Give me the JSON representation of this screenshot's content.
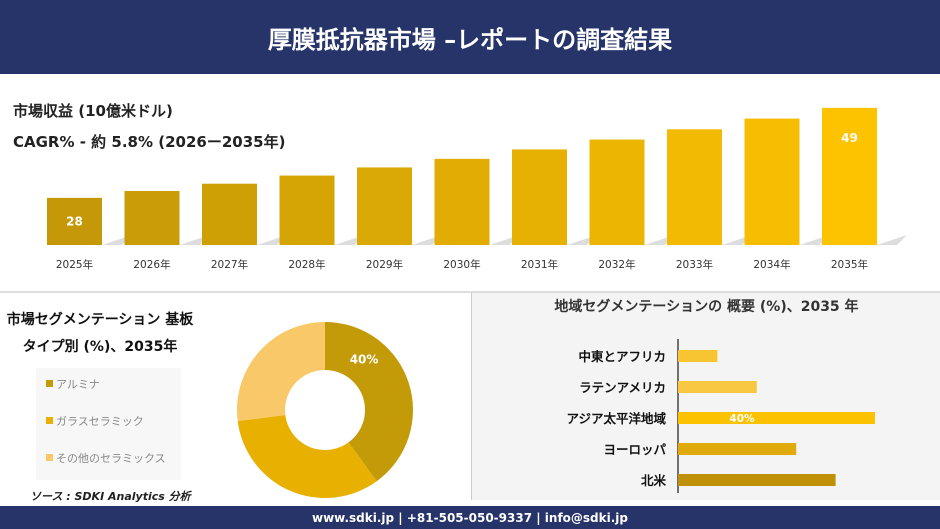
{
  "header": {
    "title": "厚膜抵抗器市場 –レポートの調査結果"
  },
  "footer": {
    "contact": "www.sdki.jp | +81-505-050-9337 | info@sdki.jp"
  },
  "source": "ソース : SDKI Analytics 分析",
  "colors": {
    "navy": "#273469",
    "dark_gold": "#c39a08",
    "gold": "#e0aa00",
    "yellow": "#f5bd00",
    "light": "#f9c868"
  },
  "chart_data": [
    {
      "type": "bar",
      "title": "市場収益 (10億米ドル)",
      "subtitle": "CAGR% - 約 5.8% (2026ー2035年)",
      "categories": [
        "2025年",
        "2026年",
        "2027年",
        "2028年",
        "2029年",
        "2030年",
        "2031年",
        "2032年",
        "2033年",
        "2034年",
        "2035年"
      ],
      "values": [
        28,
        29.6,
        31.3,
        33.2,
        35.1,
        37.1,
        39.3,
        41.6,
        44.0,
        46.5,
        49
      ],
      "data_labels": {
        "0": "28",
        "10": "49"
      }
    },
    {
      "type": "pie",
      "donut": true,
      "title": "市場セグメンテーション 基板タイプ別 (%)、2035年",
      "labels": [
        "アルミナ",
        "ガラスセラミック",
        "その他のセラミックス"
      ],
      "values": [
        40,
        33,
        27
      ],
      "colors": [
        "#c39a08",
        "#e8b000",
        "#f9c868"
      ],
      "data_labels": {
        "0": "40%"
      },
      "legend": "left"
    },
    {
      "type": "bar",
      "orientation": "horizontal",
      "title": "地域セグメンテーションの 概要 (%)、2035 年",
      "categories": [
        "中東とアフリカ",
        "ラテンアメリカ",
        "アジア太平洋地域",
        "ヨーロッパ",
        "北米"
      ],
      "values": [
        8,
        16,
        40,
        24,
        32
      ],
      "colors": [
        "#f7c531",
        "#f9c842",
        "#fcc200",
        "#e0aa0c",
        "#c09008"
      ],
      "data_labels": {
        "2": "40%"
      }
    }
  ]
}
